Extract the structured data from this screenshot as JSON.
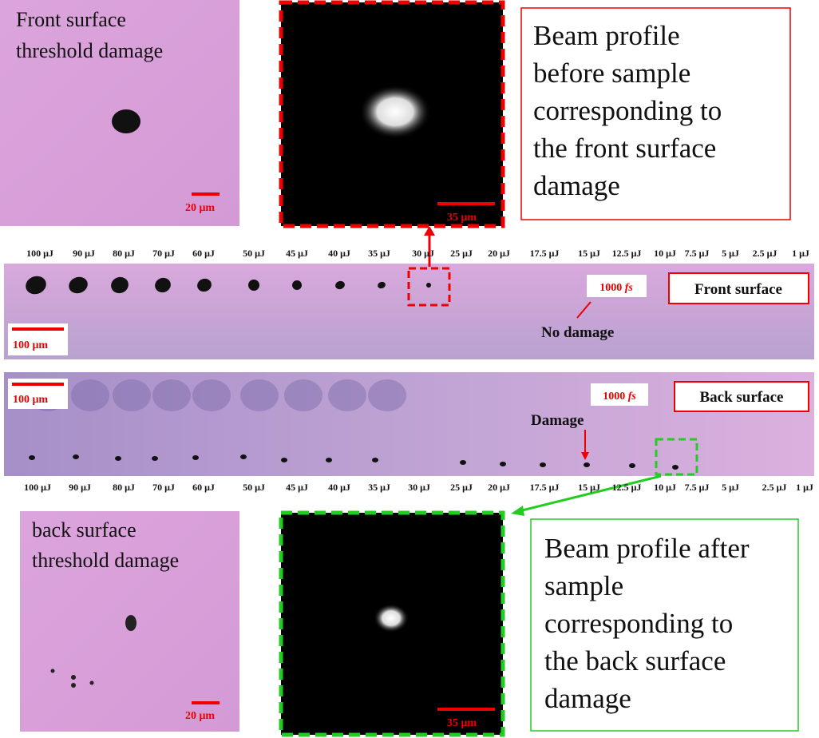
{
  "front_micrograph": {
    "label_lines": [
      "Front surface",
      "threshold damage"
    ],
    "scale": "20 μm"
  },
  "front_beam_profile": {
    "scale": "35 μm"
  },
  "front_caption": {
    "lines": [
      "Beam profile",
      "before sample",
      "corresponding to",
      "the front surface",
      "damage"
    ]
  },
  "top_energies": [
    "100 μJ",
    "90 μJ",
    "80 μJ",
    "70 μJ",
    "60 μJ",
    "50 μJ",
    "45 μJ",
    "40 μJ",
    "35 μJ",
    "30 μJ",
    "25 μJ",
    "20 μJ",
    "17.5 μJ",
    "15 μJ",
    "12.5 μJ",
    "10 μJ",
    "7.5 μJ",
    "5 μJ",
    "2.5 μJ",
    "1 μJ"
  ],
  "front_strip": {
    "scale": "100 μm",
    "pulse": {
      "value": "1000",
      "unit": "fs"
    },
    "surface": "Front surface",
    "note": "No damage"
  },
  "back_strip": {
    "scale": "100 μm",
    "pulse": {
      "value": "1000",
      "unit": "fs"
    },
    "surface": "Back surface",
    "note": "Damage"
  },
  "bottom_energies": [
    "100 μJ",
    "90 μJ",
    "80 μJ",
    "70 μJ",
    "60 μJ",
    "50 μJ",
    "45 μJ",
    "40 μJ",
    "35 μJ",
    "30 μJ",
    "25 μJ",
    "20 μJ",
    "17.5 μJ",
    "15 μJ",
    "12.5 μJ",
    "10 μJ",
    "7.5 μJ",
    "5 μJ",
    "2.5 μJ",
    "1 μJ"
  ],
  "back_micrograph": {
    "label_lines": [
      "back surface",
      "threshold damage"
    ],
    "scale": "20 μm"
  },
  "back_beam_profile": {
    "scale": "35 μm"
  },
  "back_caption": {
    "lines": [
      "Beam profile after",
      "sample",
      "corresponding to",
      "the back surface",
      "damage"
    ]
  }
}
